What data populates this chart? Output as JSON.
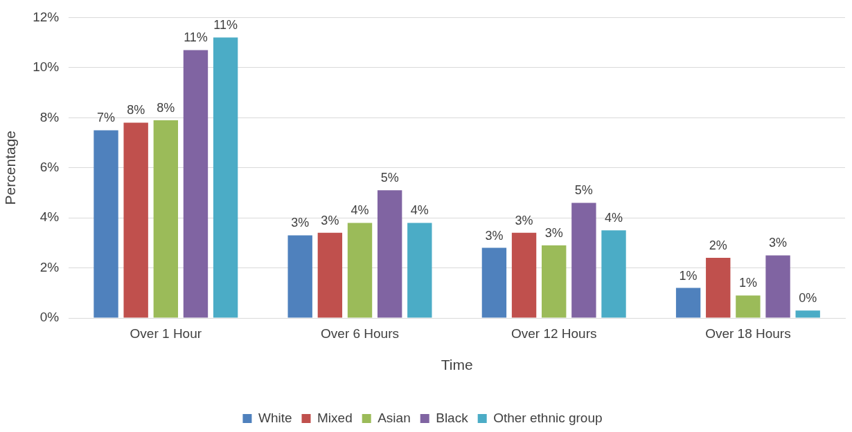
{
  "chart_data": {
    "type": "bar",
    "xlabel": "Time",
    "ylabel": "Percentage",
    "categories": [
      "Over 1 Hour",
      "Over 6 Hours",
      "Over 12 Hours",
      "Over 18 Hours"
    ],
    "series": [
      {
        "name": "White",
        "color": "#4f81bd",
        "values": [
          7.5,
          3.3,
          2.8,
          1.2
        ],
        "value_labels": [
          "7%",
          "3%",
          "3%",
          "1%"
        ]
      },
      {
        "name": "Mixed",
        "color": "#c0504d",
        "values": [
          7.8,
          3.4,
          3.4,
          2.4
        ],
        "value_labels": [
          "8%",
          "3%",
          "3%",
          "2%"
        ]
      },
      {
        "name": "Asian",
        "color": "#9bbb59",
        "values": [
          7.9,
          3.8,
          2.9,
          0.9
        ],
        "value_labels": [
          "8%",
          "4%",
          "3%",
          "1%"
        ]
      },
      {
        "name": "Black",
        "color": "#8064a2",
        "values": [
          10.7,
          5.1,
          4.6,
          2.5
        ],
        "value_labels": [
          "11%",
          "5%",
          "5%",
          "3%"
        ]
      },
      {
        "name": "Other ethnic group",
        "color": "#4bacc6",
        "values": [
          11.2,
          3.8,
          3.5,
          0.3
        ],
        "value_labels": [
          "11%",
          "4%",
          "4%",
          "0%"
        ]
      }
    ],
    "ylim": [
      0,
      12
    ],
    "yticks": [
      {
        "value": 0,
        "label": "0%"
      },
      {
        "value": 2,
        "label": "2%"
      },
      {
        "value": 4,
        "label": "4%"
      },
      {
        "value": 6,
        "label": "6%"
      },
      {
        "value": 8,
        "label": "8%"
      },
      {
        "value": 10,
        "label": "10%"
      },
      {
        "value": 12,
        "label": "12%"
      }
    ],
    "grid": "y",
    "legend": "bottom"
  }
}
